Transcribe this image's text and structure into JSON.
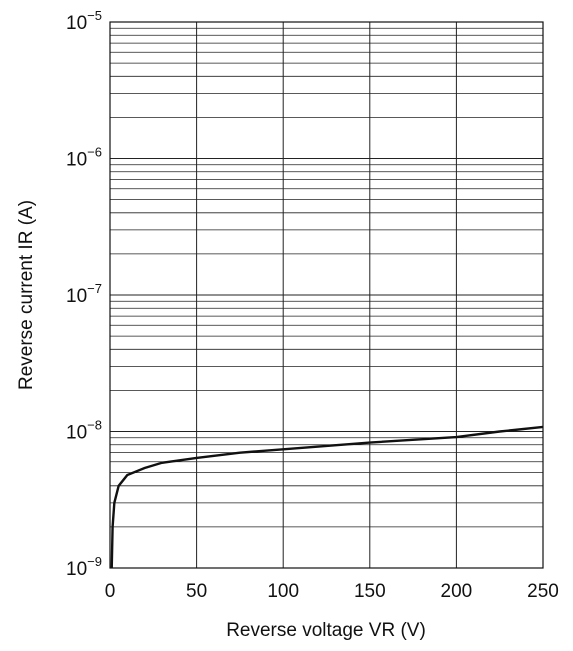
{
  "chart_data": {
    "type": "line",
    "xlabel": "Reverse voltage  VR  (V)",
    "ylabel": "Reverse current  IR  (A)",
    "x": [
      1,
      1.5,
      2.5,
      5,
      10,
      20,
      30,
      50,
      75,
      100,
      150,
      200,
      225,
      250
    ],
    "series": [
      {
        "name": "IR",
        "color": "#111111",
        "values": [
          1e-09,
          2e-09,
          3e-09,
          4e-09,
          4.8e-09,
          5.4e-09,
          5.9e-09,
          6.4e-09,
          7e-09,
          7.4e-09,
          8.3e-09,
          9.1e-09,
          1e-08,
          1.08e-08
        ]
      }
    ],
    "xlim": [
      0,
      250
    ],
    "xticks": [
      0,
      50,
      100,
      150,
      200,
      250
    ],
    "ylim": [
      1e-09,
      1e-05
    ],
    "yticks": [
      {
        "value": 1e-09,
        "label": "10−9"
      },
      {
        "value": 1e-08,
        "label": "10−8"
      },
      {
        "value": 1e-07,
        "label": "10−7"
      },
      {
        "value": 1e-06,
        "label": "10−6"
      },
      {
        "value": 1e-05,
        "label": "10−5"
      }
    ],
    "log_y": true,
    "grid": true,
    "minor_grid": true
  }
}
